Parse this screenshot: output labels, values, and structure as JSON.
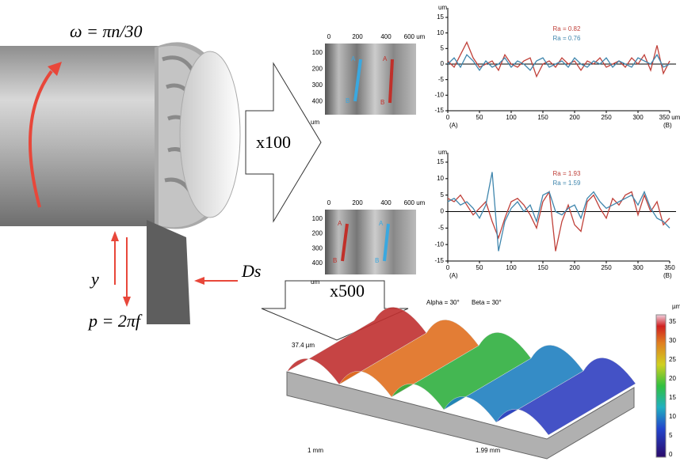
{
  "labels": {
    "omega": "ω = πn/30",
    "y": "y",
    "p": "p = 2πf",
    "ds": "Ds",
    "x100": "x100",
    "x500": "x500"
  },
  "micrographs": [
    {
      "xticks": [
        "0",
        "200",
        "400",
        "600 um"
      ],
      "yticks": [
        "100",
        "200",
        "300",
        "400"
      ],
      "unit": "um",
      "lines": [
        {
          "top": "A",
          "bottom": "B"
        },
        {
          "top": "A",
          "bottom": "B"
        }
      ]
    },
    {
      "xticks": [
        "0",
        "200",
        "400",
        "600 um"
      ],
      "yticks": [
        "100",
        "200",
        "300",
        "400"
      ],
      "unit": "um",
      "lines": [
        {
          "top": "A",
          "bottom": "B"
        },
        {
          "top": "A",
          "bottom": "B"
        }
      ]
    }
  ],
  "chart_data": [
    {
      "type": "line",
      "y_unit": "um",
      "x_start_label": "(A)",
      "x_end_label": "(B)",
      "annotations": [
        "Ra = 0.82",
        "Ra = 0.76"
      ],
      "x": [
        0,
        10,
        20,
        30,
        40,
        50,
        60,
        70,
        80,
        90,
        100,
        110,
        120,
        130,
        140,
        150,
        160,
        170,
        180,
        190,
        200,
        210,
        220,
        230,
        240,
        250,
        260,
        270,
        280,
        290,
        300,
        310,
        320,
        330,
        340,
        350
      ],
      "xlim": [
        0,
        350
      ],
      "ylim": [
        -15,
        15
      ],
      "xticks": [
        0,
        50,
        100,
        150,
        200,
        250,
        300,
        {
          "value": 350,
          "label": "350 um"
        }
      ],
      "yticks": [
        -15,
        -10,
        -5,
        0,
        5,
        10,
        15
      ],
      "series": [
        {
          "name": "A",
          "color": "#c0413a",
          "values": [
            1,
            -1,
            3,
            7,
            2,
            -1,
            0,
            1,
            -2,
            3,
            0,
            -1,
            1,
            2,
            -4,
            0,
            1,
            -1,
            2,
            0,
            1,
            -2,
            1,
            0,
            2,
            -1,
            0,
            1,
            -1,
            2,
            0,
            3,
            -2,
            6,
            -3,
            1
          ]
        },
        {
          "name": "B",
          "color": "#3f86ad",
          "values": [
            0,
            2,
            -1,
            3,
            1,
            -2,
            1,
            -1,
            0,
            2,
            -1,
            1,
            0,
            -2,
            1,
            2,
            -1,
            0,
            1,
            -1,
            2,
            0,
            -1,
            1,
            0,
            2,
            -1,
            1,
            0,
            -1,
            2,
            1,
            0,
            3,
            -1,
            0
          ]
        }
      ]
    },
    {
      "type": "line",
      "y_unit": "um",
      "x_start_label": "(A)",
      "x_end_label": "(B)",
      "annotations": [
        "Ra = 1.93",
        "Ra = 1.59"
      ],
      "x": [
        0,
        10,
        20,
        30,
        40,
        50,
        60,
        70,
        80,
        90,
        100,
        110,
        120,
        130,
        140,
        150,
        160,
        170,
        180,
        190,
        200,
        210,
        220,
        230,
        240,
        250,
        260,
        270,
        280,
        290,
        300,
        310,
        320,
        330,
        340,
        350
      ],
      "xlim": [
        0,
        350
      ],
      "ylim": [
        -15,
        15
      ],
      "xticks": [
        0,
        50,
        100,
        150,
        200,
        250,
        300,
        350
      ],
      "yticks": [
        -15,
        -10,
        -5,
        0,
        5,
        10,
        15
      ],
      "series": [
        {
          "name": "A",
          "color": "#c0413a",
          "values": [
            4,
            3,
            5,
            2,
            -1,
            1,
            3,
            -3,
            -8,
            -2,
            3,
            4,
            2,
            -1,
            -5,
            3,
            6,
            -12,
            -3,
            2,
            -4,
            -6,
            3,
            5,
            1,
            -2,
            4,
            2,
            5,
            6,
            -1,
            5,
            0,
            3,
            -4,
            -2
          ]
        },
        {
          "name": "B",
          "color": "#3f86ad",
          "values": [
            3,
            4,
            2,
            3,
            1,
            -2,
            2,
            12,
            -12,
            -3,
            1,
            3,
            0,
            2,
            -3,
            5,
            6,
            0,
            -1,
            1,
            2,
            -2,
            4,
            6,
            3,
            1,
            2,
            3,
            4,
            5,
            2,
            6,
            1,
            -2,
            -3,
            -5
          ]
        }
      ]
    }
  ],
  "surface": {
    "alpha": "Alpha = 30°",
    "beta": "Beta = 30°",
    "height": "37.4 µm",
    "width1": "1 mm",
    "width2": "1.99 mm",
    "unit": "µm",
    "colorbar_ticks": [
      "0",
      "5",
      "10",
      "15",
      "20",
      "25",
      "30",
      "35"
    ]
  }
}
